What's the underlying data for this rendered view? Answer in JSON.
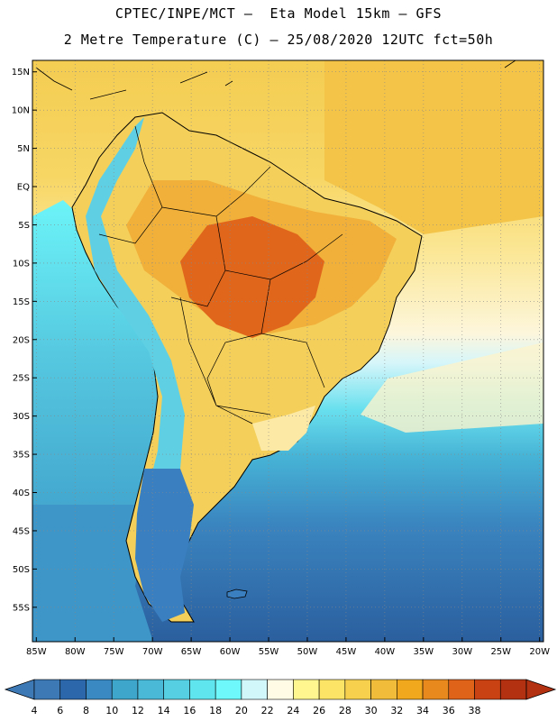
{
  "header": {
    "line1": "CPTEC/INPE/MCT –  Eta Model 15km – GFS",
    "line2": "2 Metre Temperature (C) – 25/08/2020 12UTC fct=50h"
  },
  "map": {
    "lon_range": [
      -85.5,
      -19.5
    ],
    "lat_range": [
      -59.5,
      16.5
    ],
    "lat_ticks": [
      {
        "value": 15,
        "label": "15N"
      },
      {
        "value": 10,
        "label": "10N"
      },
      {
        "value": 5,
        "label": "5N"
      },
      {
        "value": 0,
        "label": "EQ"
      },
      {
        "value": -5,
        "label": "5S"
      },
      {
        "value": -10,
        "label": "10S"
      },
      {
        "value": -15,
        "label": "15S"
      },
      {
        "value": -20,
        "label": "20S"
      },
      {
        "value": -25,
        "label": "25S"
      },
      {
        "value": -30,
        "label": "30S"
      },
      {
        "value": -35,
        "label": "35S"
      },
      {
        "value": -40,
        "label": "40S"
      },
      {
        "value": -45,
        "label": "45S"
      },
      {
        "value": -50,
        "label": "50S"
      },
      {
        "value": -55,
        "label": "55S"
      }
    ],
    "lon_ticks": [
      {
        "value": -85,
        "label": "85W"
      },
      {
        "value": -80,
        "label": "80W"
      },
      {
        "value": -75,
        "label": "75W"
      },
      {
        "value": -70,
        "label": "70W"
      },
      {
        "value": -65,
        "label": "65W"
      },
      {
        "value": -60,
        "label": "60W"
      },
      {
        "value": -55,
        "label": "55W"
      },
      {
        "value": -50,
        "label": "50W"
      },
      {
        "value": -45,
        "label": "45W"
      },
      {
        "value": -40,
        "label": "40W"
      },
      {
        "value": -35,
        "label": "35W"
      },
      {
        "value": -30,
        "label": "30W"
      },
      {
        "value": -25,
        "label": "25W"
      },
      {
        "value": -20,
        "label": "20W"
      }
    ]
  },
  "colorbar": {
    "labels": [
      "4",
      "6",
      "8",
      "10",
      "12",
      "14",
      "16",
      "18",
      "20",
      "22",
      "24",
      "26",
      "28",
      "30",
      "32",
      "34",
      "36",
      "38"
    ],
    "colors": [
      "#3d79b5",
      "#2b67aa",
      "#3b89c2",
      "#3ea6cb",
      "#4ab9d8",
      "#56cfe3",
      "#5fe5ee",
      "#6ef8fb",
      "#d2f7fb",
      "#fffbe4",
      "#fff690",
      "#fbe466",
      "#f7d04e",
      "#f0bc3a",
      "#f1a81d",
      "#e8891e",
      "#e0631a",
      "#c94214",
      "#b33010"
    ],
    "low_color": "#3d79b5",
    "high_color": "#b33010"
  },
  "temperature_regions": {
    "ocean_north": 27,
    "ocean_south": 8,
    "amazon": 30,
    "central_hot": 33,
    "andes": 14,
    "patagonia": 6
  }
}
